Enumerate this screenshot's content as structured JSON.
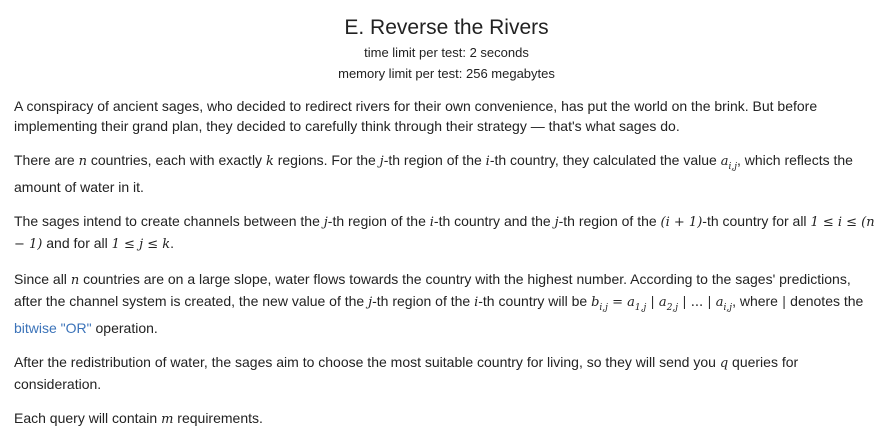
{
  "problem": {
    "title": "E. Reverse the Rivers",
    "time_limit": "time limit per test: 2 seconds",
    "memory_limit": "memory limit per test: 256 megabytes"
  },
  "statement": {
    "p1": "A conspiracy of ancient sages, who decided to redirect rivers for their own convenience, has put the world on the brink. But before implementing their grand plan, they decided to carefully think through their strategy — that's what sages do.",
    "p2": {
      "t1": "There are ",
      "n": "n",
      "t2": " countries, each with exactly ",
      "k": "k",
      "t3": " regions. For the ",
      "j": "j",
      "t4": "-th region of the ",
      "i": "i",
      "t5": "-th country, they calculated the value ",
      "a": "a",
      "aij": "i,j",
      "t6": ", which reflects the amount of water in it."
    },
    "p3": {
      "t1": "The sages intend to create channels between the ",
      "j1": "j",
      "t2": "-th region of the ",
      "i1": "i",
      "t3": "-th country and the ",
      "j2": "j",
      "t4": "-th region of the ",
      "paren": "(i + 1)",
      "t5": "-th country for all ",
      "cond1": "1 ≤ i ≤ (n − 1)",
      "t6": " and for all ",
      "cond2": "1 ≤ j ≤ k",
      "t7": "."
    },
    "p4": {
      "t1": "Since all ",
      "n": "n",
      "t2": " countries are on a large slope, water flows towards the country with the highest number. According to the sages' predictions, after the channel system is created, the new value of the ",
      "j": "j",
      "t3": "-th region of the ",
      "i": "i",
      "t4": "-th country will be ",
      "formula_b": "b",
      "formula_b_sub": "i,j",
      "formula_eq": " = ",
      "formula_a1": "a",
      "formula_a1_sub": "1,j",
      "formula_or1": " | ",
      "formula_a2": "a",
      "formula_a2_sub": "2,j",
      "formula_or2": " | ... | ",
      "formula_ai": "a",
      "formula_ai_sub": "i,j",
      "t5": ", where ",
      "pipe": "|",
      "t6": " denotes the ",
      "link": "bitwise \"OR\"",
      "t7": " operation."
    },
    "p5": {
      "t1": "After the redistribution of water, the sages aim to choose the most suitable country for living, so they will send you ",
      "q": "q",
      "t2": " queries for consideration."
    },
    "p6": {
      "t1": "Each query will contain ",
      "m": "m",
      "t2": " requirements."
    }
  }
}
